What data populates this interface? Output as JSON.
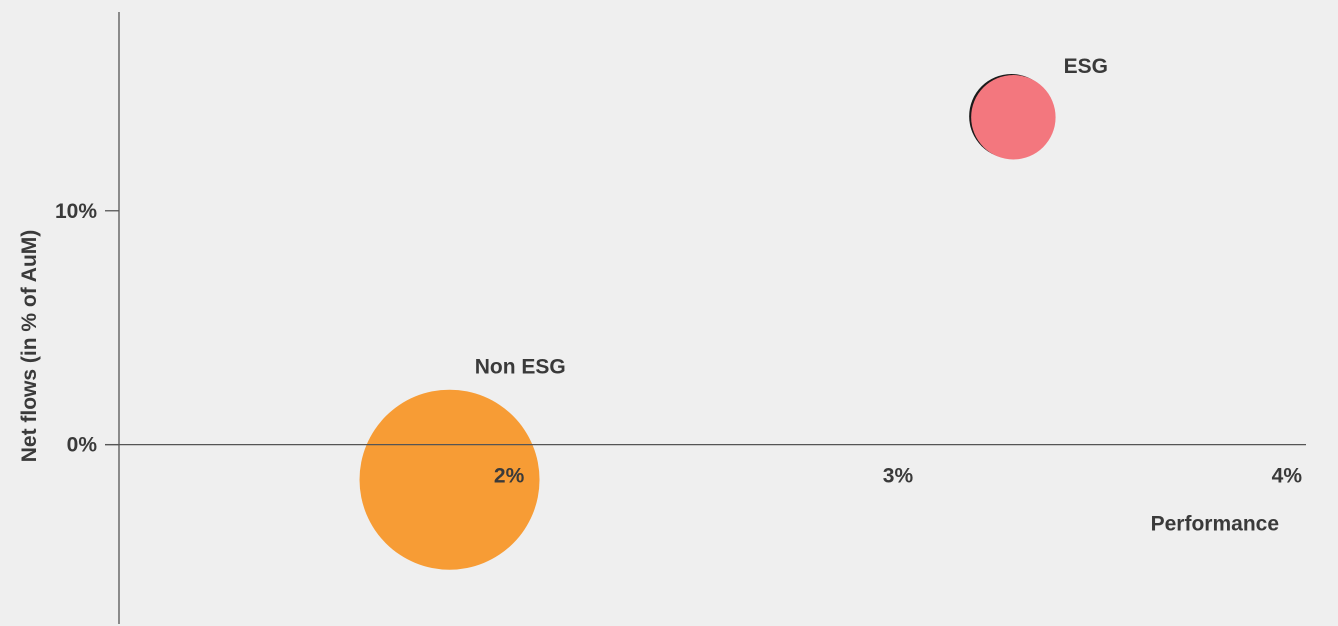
{
  "chart_data": {
    "type": "scatter",
    "subtype": "bubble",
    "title": "",
    "xlabel": "Performance",
    "ylabel": "Net flows (in % of AuM)",
    "x_ticks": [
      {
        "value": 2,
        "label": "2%"
      },
      {
        "value": 3,
        "label": "3%"
      },
      {
        "value": 4,
        "label": "4%"
      }
    ],
    "y_ticks": [
      {
        "value": 0,
        "label": "0%"
      },
      {
        "value": 10,
        "label": "10%"
      }
    ],
    "xlim": [
      0.95,
      4.0
    ],
    "ylim": [
      -7.5,
      18.5
    ],
    "grid": false,
    "legend": "none",
    "series": [
      {
        "name": "Non ESG",
        "x": 1.8,
        "y": -1.5,
        "relative_size": 1.0,
        "color": "#f79c35"
      },
      {
        "name": "ESG",
        "x": 3.25,
        "y": 14.0,
        "relative_size": 0.22,
        "color": "#f3777e"
      }
    ]
  }
}
